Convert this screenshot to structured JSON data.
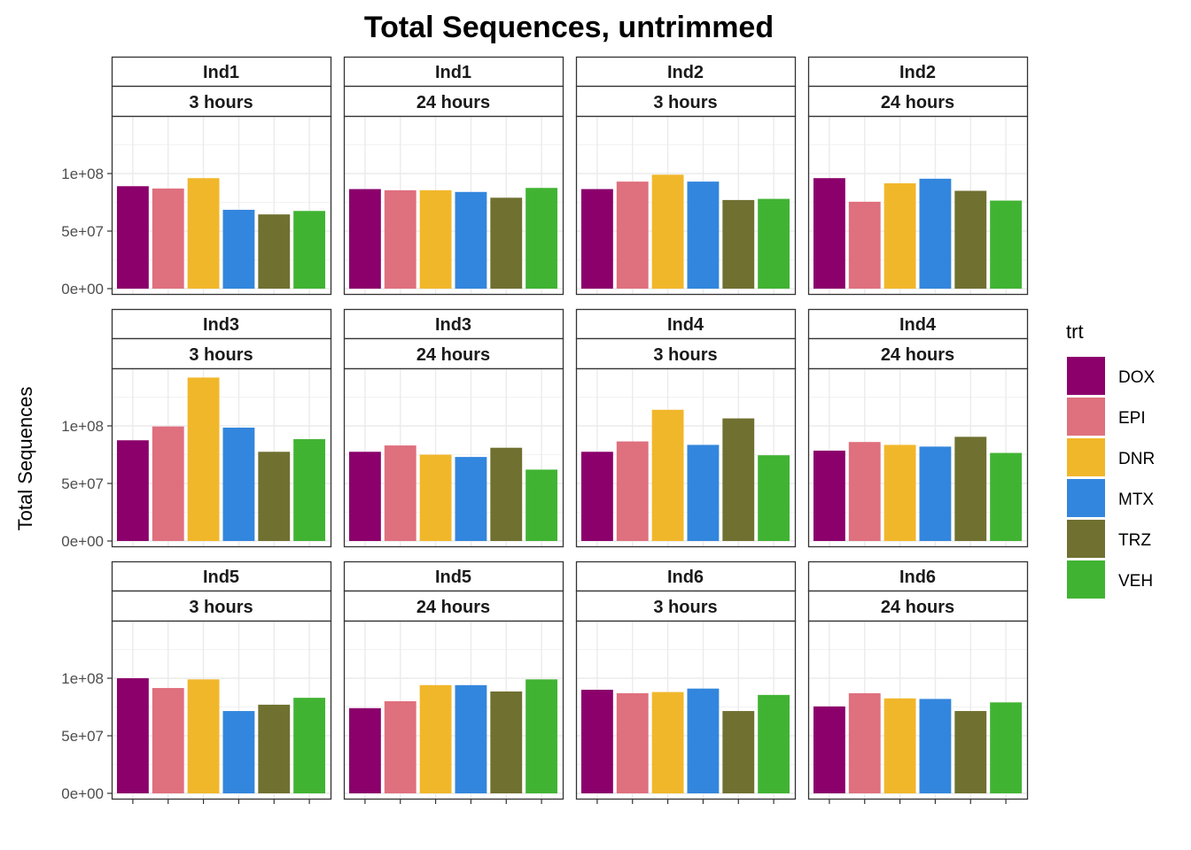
{
  "chart_data": {
    "type": "bar",
    "title": "Total Sequences, untrimmed",
    "ylabel": "Total Sequences",
    "xlabel": "",
    "ylim": [
      0,
      150000000
    ],
    "yticks": [
      0,
      50000000,
      100000000
    ],
    "ytick_labels": [
      "0e+00",
      "5e+07",
      "1e+08"
    ],
    "grid": true,
    "legend_position": "right",
    "legend": {
      "title": "trt",
      "items": [
        {
          "label": "DOX",
          "color": "#8B006B"
        },
        {
          "label": "EPI",
          "color": "#DF707E"
        },
        {
          "label": "DNR",
          "color": "#F1B72B"
        },
        {
          "label": "MTX",
          "color": "#3386DD"
        },
        {
          "label": "TRZ",
          "color": "#707031"
        },
        {
          "label": "VEH",
          "color": "#41B333"
        }
      ]
    },
    "categories": [
      "DOX",
      "EPI",
      "DNR",
      "MTX",
      "TRZ",
      "VEH"
    ],
    "panels": [
      {
        "individual": "Ind1",
        "time": "3 hours",
        "values": [
          89000000,
          87000000,
          96000000,
          68500000,
          64500000,
          67500000
        ]
      },
      {
        "individual": "Ind1",
        "time": "24 hours",
        "values": [
          86500000,
          85500000,
          85500000,
          84000000,
          79000000,
          87500000
        ]
      },
      {
        "individual": "Ind2",
        "time": "3 hours",
        "values": [
          86500000,
          93000000,
          99000000,
          93000000,
          77000000,
          78000000
        ]
      },
      {
        "individual": "Ind2",
        "time": "24 hours",
        "values": [
          96000000,
          75500000,
          91500000,
          95500000,
          85000000,
          76500000
        ]
      },
      {
        "individual": "Ind3",
        "time": "3 hours",
        "values": [
          87500000,
          99500000,
          142000000,
          98500000,
          77500000,
          88500000
        ]
      },
      {
        "individual": "Ind3",
        "time": "24 hours",
        "values": [
          77500000,
          83000000,
          75000000,
          73000000,
          81000000,
          62000000
        ]
      },
      {
        "individual": "Ind4",
        "time": "3 hours",
        "values": [
          77500000,
          86500000,
          114000000,
          83500000,
          106500000,
          74500000
        ]
      },
      {
        "individual": "Ind4",
        "time": "24 hours",
        "values": [
          78500000,
          86000000,
          83500000,
          82000000,
          90500000,
          76500000
        ]
      },
      {
        "individual": "Ind5",
        "time": "3 hours",
        "values": [
          100000000,
          91500000,
          99000000,
          71500000,
          77000000,
          83000000
        ]
      },
      {
        "individual": "Ind5",
        "time": "24 hours",
        "values": [
          74000000,
          80000000,
          94000000,
          94000000,
          88500000,
          99000000
        ]
      },
      {
        "individual": "Ind6",
        "time": "3 hours",
        "values": [
          90000000,
          87000000,
          88000000,
          91000000,
          71500000,
          85500000
        ]
      },
      {
        "individual": "Ind6",
        "time": "24 hours",
        "values": [
          75500000,
          87000000,
          82500000,
          82000000,
          71500000,
          79000000
        ]
      }
    ]
  }
}
